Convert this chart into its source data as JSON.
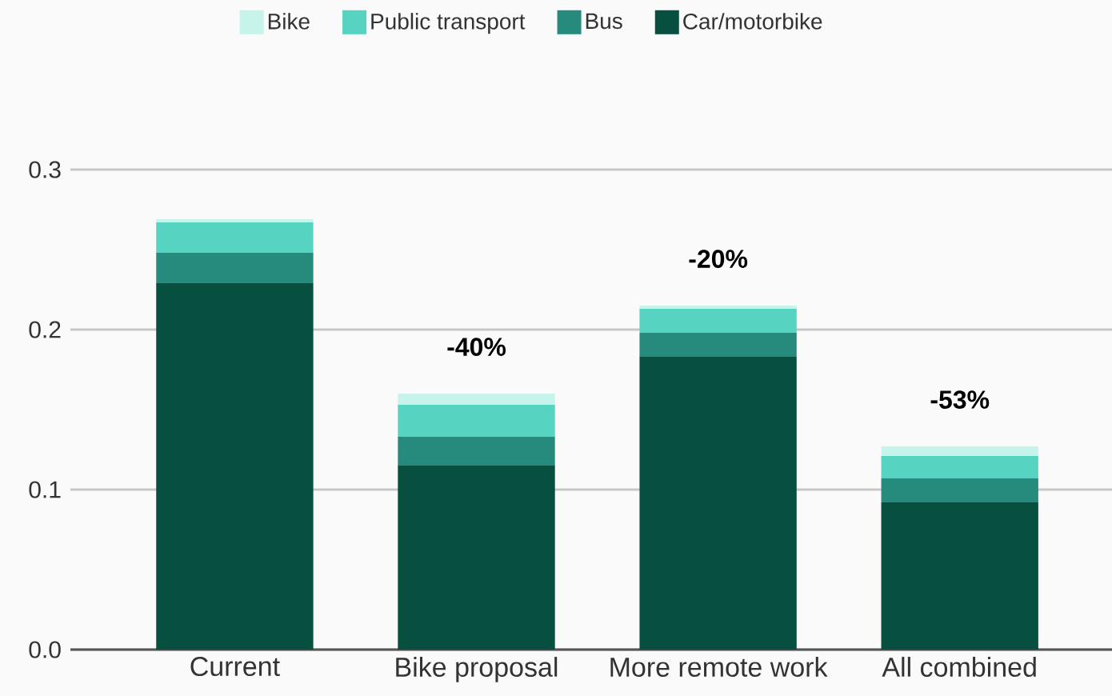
{
  "chart_data": {
    "type": "bar",
    "stacked": true,
    "categories": [
      "Current",
      "Bike proposal",
      "More remote work",
      "All combined"
    ],
    "series": [
      {
        "name": "Car/motorbike",
        "color": "#074f3e",
        "values": [
          0.229,
          0.115,
          0.183,
          0.092
        ]
      },
      {
        "name": "Bus",
        "color": "#268b7c",
        "values": [
          0.019,
          0.018,
          0.015,
          0.015
        ]
      },
      {
        "name": "Public transport",
        "color": "#56d3c1",
        "values": [
          0.019,
          0.02,
          0.015,
          0.014
        ]
      },
      {
        "name": "Bike",
        "color": "#c6f4eb",
        "values": [
          0.002,
          0.007,
          0.002,
          0.006
        ]
      }
    ],
    "ylim": [
      0,
      0.3
    ],
    "yticks": [
      {
        "value": 0,
        "label": "0.0"
      },
      0.1,
      0.2,
      0.3
    ],
    "grid": "y",
    "legend": "top",
    "annotations": [
      {
        "text": "-40%",
        "x": "Bike proposal",
        "y": 0.16
      },
      {
        "text": "-20%",
        "x": "More remote work",
        "y": 0.215
      },
      {
        "text": "-53%",
        "x": "All combined",
        "y": 0.127
      }
    ]
  }
}
